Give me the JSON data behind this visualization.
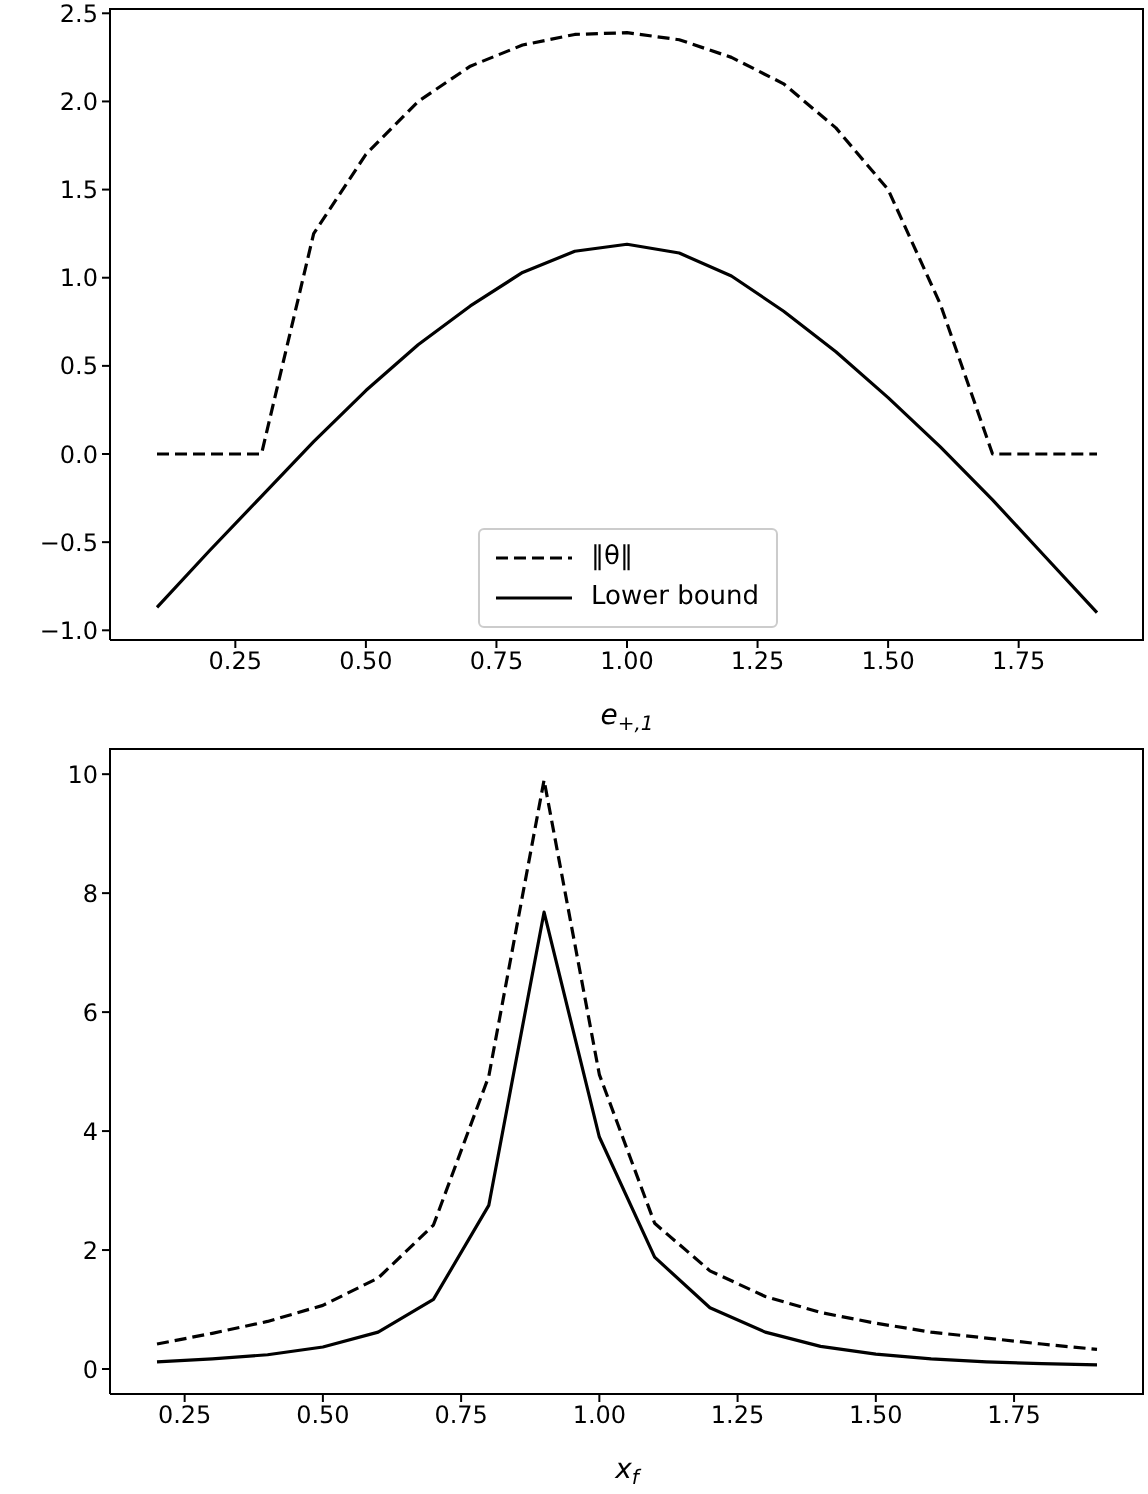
{
  "chart_data": [
    {
      "type": "line",
      "xlabel": "e$_{+,1}$",
      "x": [
        0.1,
        0.2,
        0.3,
        0.4,
        0.5,
        0.6,
        0.7,
        0.8,
        0.9,
        1.0,
        1.1,
        1.2,
        1.3,
        1.4,
        1.5,
        1.6,
        1.7,
        1.8,
        1.9
      ],
      "xlim": [
        0.01,
        1.99
      ],
      "xticks": [
        {
          "value": 0.25,
          "label": "0.25"
        },
        {
          "value": 0.5,
          "label": "0.50"
        },
        {
          "value": 0.75,
          "label": "0.75"
        },
        {
          "value": 1.0,
          "label": "1.00"
        },
        {
          "value": 1.25,
          "label": "1.25"
        },
        {
          "value": 1.5,
          "label": "1.50"
        },
        {
          "value": 1.75,
          "label": "1.75"
        }
      ],
      "ylim": [
        -1.055,
        2.53
      ],
      "yticks": [
        {
          "value": -1,
          "label": "−1.0"
        },
        {
          "value": -0.5,
          "label": "−0.5"
        },
        {
          "value": 0,
          "label": "0.0"
        },
        {
          "value": 0.5,
          "label": "0.5"
        },
        {
          "value": 1,
          "label": "1.0"
        },
        {
          "value": 1.5,
          "label": "1.5"
        },
        {
          "value": 2,
          "label": "2.0"
        },
        {
          "value": 2.5,
          "label": "2.5"
        }
      ],
      "legend": "bottom",
      "series": [
        {
          "name": "‖θ‖",
          "color": "#000000",
          "line_style": "dashed",
          "values": [
            0,
            0,
            0,
            1.25,
            1.7,
            2.0,
            2.2,
            2.32,
            2.38,
            2.39,
            2.35,
            2.25,
            2.1,
            1.85,
            1.5,
            0.85,
            0,
            0,
            0
          ]
        },
        {
          "name": "Lower bound",
          "color": "#000000",
          "line_style": "solid",
          "values": [
            -0.87,
            -0.55,
            -0.24,
            0.07,
            0.36,
            0.62,
            0.84,
            1.03,
            1.15,
            1.19,
            1.14,
            1.01,
            0.81,
            0.58,
            0.32,
            0.04,
            -0.26,
            -0.58,
            -0.9
          ]
        }
      ]
    },
    {
      "type": "line",
      "xlabel": "x$_{f}$",
      "x": [
        0.2,
        0.3,
        0.4,
        0.5,
        0.6,
        0.7,
        0.8,
        0.9,
        1.0,
        1.1,
        1.2,
        1.3,
        1.4,
        1.5,
        1.6,
        1.7,
        1.8,
        1.9
      ],
      "xlim": [
        0.115,
        1.985
      ],
      "xticks": [
        {
          "value": 0.25,
          "label": "0.25"
        },
        {
          "value": 0.5,
          "label": "0.50"
        },
        {
          "value": 0.75,
          "label": "0.75"
        },
        {
          "value": 1.0,
          "label": "1.00"
        },
        {
          "value": 1.25,
          "label": "1.25"
        },
        {
          "value": 1.5,
          "label": "1.50"
        },
        {
          "value": 1.75,
          "label": "1.75"
        }
      ],
      "ylim": [
        -0.42,
        10.44
      ],
      "yticks": [
        0,
        2,
        4,
        6,
        8,
        10
      ],
      "series": [
        {
          "color": "#000000",
          "line_style": "dashed",
          "values": [
            0.42,
            0.6,
            0.8,
            1.07,
            1.53,
            2.42,
            4.92,
            9.9,
            4.95,
            2.45,
            1.65,
            1.22,
            0.95,
            0.77,
            0.62,
            0.52,
            0.42,
            0.33
          ]
        },
        {
          "color": "#000000",
          "line_style": "solid",
          "values": [
            0.12,
            0.17,
            0.24,
            0.37,
            0.62,
            1.17,
            2.75,
            7.68,
            3.9,
            1.88,
            1.03,
            0.62,
            0.38,
            0.25,
            0.17,
            0.12,
            0.09,
            0.07
          ]
        }
      ]
    }
  ]
}
